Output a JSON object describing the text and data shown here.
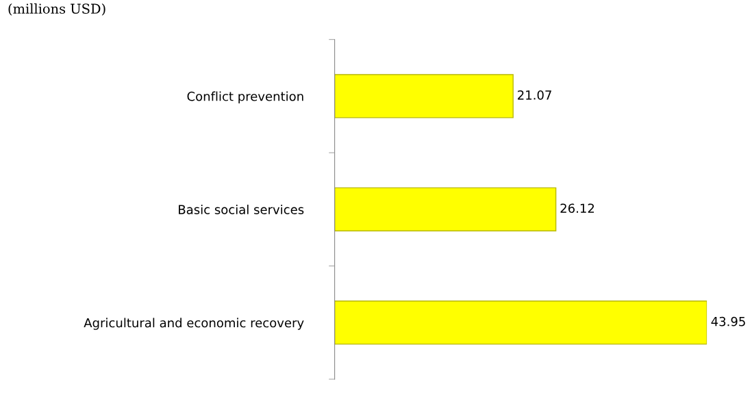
{
  "chart_data": {
    "type": "bar",
    "orientation": "horizontal",
    "title": "(millions USD)",
    "categories": [
      "Conflict prevention",
      "Basic social services",
      "Agricultural and economic recovery"
    ],
    "values": [
      21.07,
      26.12,
      43.95
    ],
    "color": "#ffff00",
    "data_labels": true,
    "grid": false,
    "legend": false
  }
}
